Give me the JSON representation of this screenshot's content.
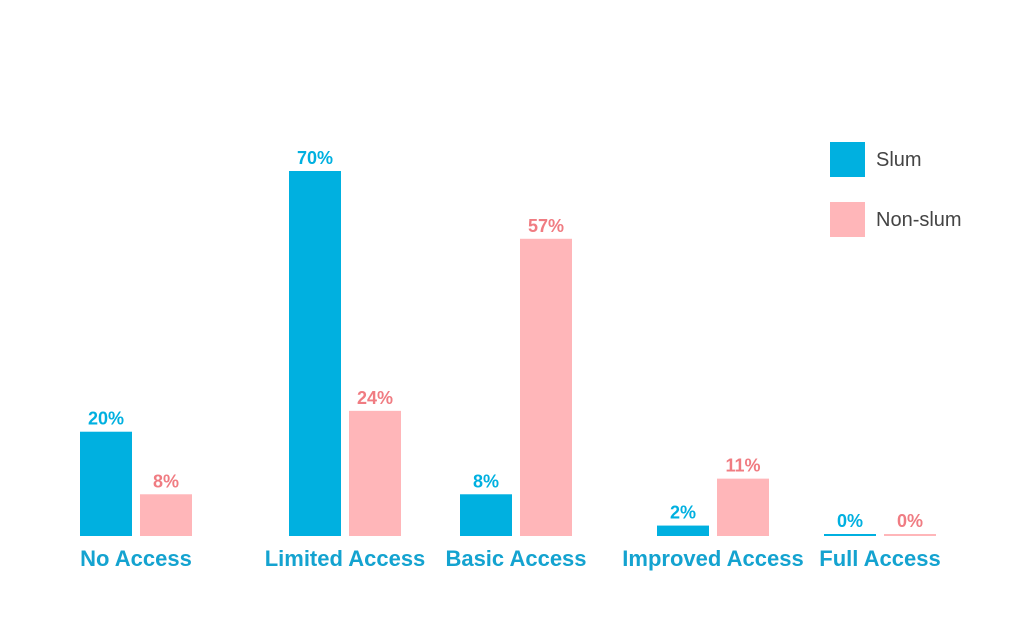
{
  "chart_data": {
    "type": "bar",
    "title": "",
    "xlabel": "",
    "ylabel": "",
    "ylim": [
      0,
      70
    ],
    "grid": false,
    "legend_position": "top-right",
    "categories": [
      "No Access",
      "Limited Access",
      "Basic Access",
      "Improved Access",
      "Full Access"
    ],
    "series": [
      {
        "name": "Slum",
        "color": "#00b0e0",
        "values": [
          20,
          70,
          8,
          2,
          0
        ],
        "labels": [
          "20%",
          "70%",
          "8%",
          "2%",
          "0%"
        ]
      },
      {
        "name": "Non-slum",
        "color": "#ffb6b9",
        "label_color": "#f07c82",
        "values": [
          8,
          24,
          57,
          11,
          0
        ],
        "labels": [
          "8%",
          "24%",
          "57%",
          "11%",
          "0%"
        ]
      }
    ],
    "category_label_color": "#14a3d0"
  }
}
